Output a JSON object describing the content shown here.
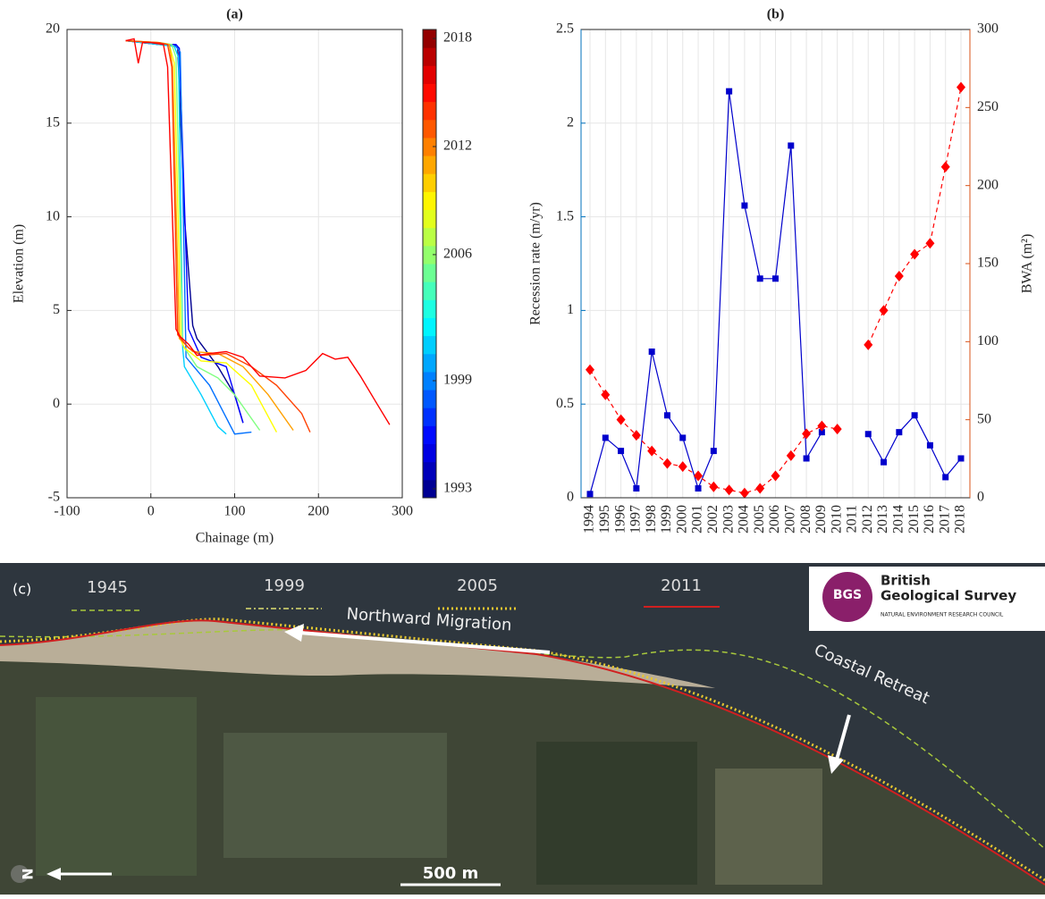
{
  "chart_data": [
    {
      "type": "line",
      "title": "(a)",
      "xlabel": "Chainage (m)",
      "ylabel": "Elevation (m)",
      "xlim": [
        -100,
        300
      ],
      "xticks": [
        -100,
        0,
        100,
        200,
        300
      ],
      "ylim": [
        -5,
        20
      ],
      "yticks": [
        -5,
        0,
        5,
        10,
        15,
        20
      ],
      "grid": true,
      "colormap": "jet",
      "clim": [
        1992.5,
        2018.5
      ],
      "cticks": [
        1993,
        1999,
        2006,
        2012,
        2018
      ],
      "series": [
        {
          "color": "#00008f",
          "x": [
            -30,
            -10,
            10,
            28,
            32,
            40,
            50,
            55,
            80,
            100,
            110
          ],
          "y": [
            19.4,
            19.3,
            19.2,
            19.2,
            19,
            10,
            4.2,
            3.5,
            2,
            0.5,
            -1
          ]
        },
        {
          "color": "#0000ff",
          "x": [
            -30,
            10,
            30,
            34,
            45,
            60,
            90,
            110
          ],
          "y": [
            19.4,
            19.2,
            19.2,
            19,
            4,
            2.5,
            2,
            -1
          ]
        },
        {
          "color": "#0070ff",
          "x": [
            -30,
            10,
            30,
            35,
            42,
            70,
            100,
            120
          ],
          "y": [
            19.4,
            19.2,
            19.1,
            18.8,
            2.5,
            1,
            -1.6,
            -1.5
          ]
        },
        {
          "color": "#00d0ff",
          "x": [
            -30,
            10,
            28,
            33,
            38,
            40,
            60,
            80,
            90
          ],
          "y": [
            19.4,
            19.2,
            19.1,
            18.5,
            3,
            2,
            0.5,
            -1.2,
            -1.6
          ]
        },
        {
          "color": "#80ff80",
          "x": [
            -30,
            10,
            25,
            30,
            38,
            40,
            55,
            80,
            100,
            130
          ],
          "y": [
            19.4,
            19.3,
            19.2,
            18.5,
            3.2,
            3,
            2,
            1.4,
            0.5,
            -1.4
          ]
        },
        {
          "color": "#ffff00",
          "x": [
            -30,
            10,
            22,
            28,
            36,
            40,
            60,
            90,
            120,
            150
          ],
          "y": [
            19.4,
            19.3,
            19.2,
            18.2,
            3.4,
            3,
            2.3,
            2.2,
            1,
            -1.5
          ]
        },
        {
          "color": "#ffa000",
          "x": [
            -30,
            10,
            22,
            26,
            34,
            50,
            80,
            110,
            140,
            170
          ],
          "y": [
            19.4,
            19.3,
            19.2,
            18,
            3.5,
            2.8,
            2.7,
            2,
            0.5,
            -1.4
          ]
        },
        {
          "color": "#ff4000",
          "x": [
            -30,
            10,
            20,
            25,
            32,
            45,
            60,
            90,
            120,
            150,
            180,
            190
          ],
          "y": [
            19.4,
            19.3,
            19.2,
            18,
            3.7,
            3,
            2.6,
            2.7,
            2,
            1,
            -0.5,
            -1.5
          ]
        },
        {
          "color": "#ff0000",
          "x": [
            -30,
            -20,
            -15,
            -10,
            0,
            15,
            20,
            30,
            35,
            45,
            55,
            70,
            90,
            110,
            130,
            160,
            185,
            205,
            220,
            235,
            250,
            270,
            285
          ],
          "y": [
            19.4,
            19.5,
            18.2,
            19.3,
            19.3,
            19.2,
            18,
            4,
            3.6,
            3.2,
            2.6,
            2.7,
            2.8,
            2.5,
            1.5,
            1.4,
            1.8,
            2.7,
            2.4,
            2.5,
            1.5,
            0,
            -1.1
          ]
        }
      ]
    },
    {
      "type": "line",
      "title": "(b)",
      "ylabel": "Recession rate (m/yr)",
      "y2label": "BWA (m²)",
      "categories": [
        "1994",
        "1995",
        "1996",
        "1997",
        "1998",
        "1999",
        "2000",
        "2001",
        "2002",
        "2003",
        "2004",
        "2005",
        "2006",
        "2007",
        "2008",
        "2009",
        "2010",
        "2011",
        "2012",
        "2013",
        "2014",
        "2015",
        "2016",
        "2017",
        "2018"
      ],
      "ylim": [
        0,
        2.5
      ],
      "yticks": [
        0,
        0.5,
        1,
        1.5,
        2,
        2.5
      ],
      "ycolor": "#0072bd",
      "y2lim": [
        0,
        300
      ],
      "y2ticks": [
        0,
        50,
        100,
        150,
        200,
        250,
        300
      ],
      "y2color": "#d95319",
      "grid": true,
      "series": [
        {
          "color": "#0000cc",
          "marker": "square",
          "dashed": false,
          "values": [
            0.02,
            0.32,
            0.25,
            0.05,
            0.78,
            0.44,
            0.32,
            0.05,
            0.25,
            2.17,
            1.56,
            1.17,
            1.17,
            1.88,
            0.21,
            0.35,
            null,
            null,
            0.34,
            0.19,
            0.35,
            0.44,
            0.28,
            0.11,
            0.21
          ]
        },
        {
          "color": "#ff0000",
          "marker": "diamond",
          "dashed": true,
          "axis": "y2",
          "values": [
            82,
            66,
            50,
            40,
            30,
            22,
            20,
            14,
            7,
            5,
            3,
            6,
            14,
            27,
            41,
            46,
            44,
            null,
            98,
            120,
            142,
            156,
            163,
            212,
            263
          ]
        }
      ]
    }
  ],
  "map": {
    "panel": "(c)",
    "years": [
      "1945",
      "1999",
      "2005",
      "2011"
    ],
    "migration": "Northward Migration",
    "retreat": "Coastal Retreat",
    "scale": "500 m",
    "north": "N",
    "logo": {
      "mark": "BGS",
      "line1": "British",
      "line2": "Geological Survey",
      "line3": "NATURAL ENVIRONMENT RESEARCH COUNCIL"
    }
  }
}
